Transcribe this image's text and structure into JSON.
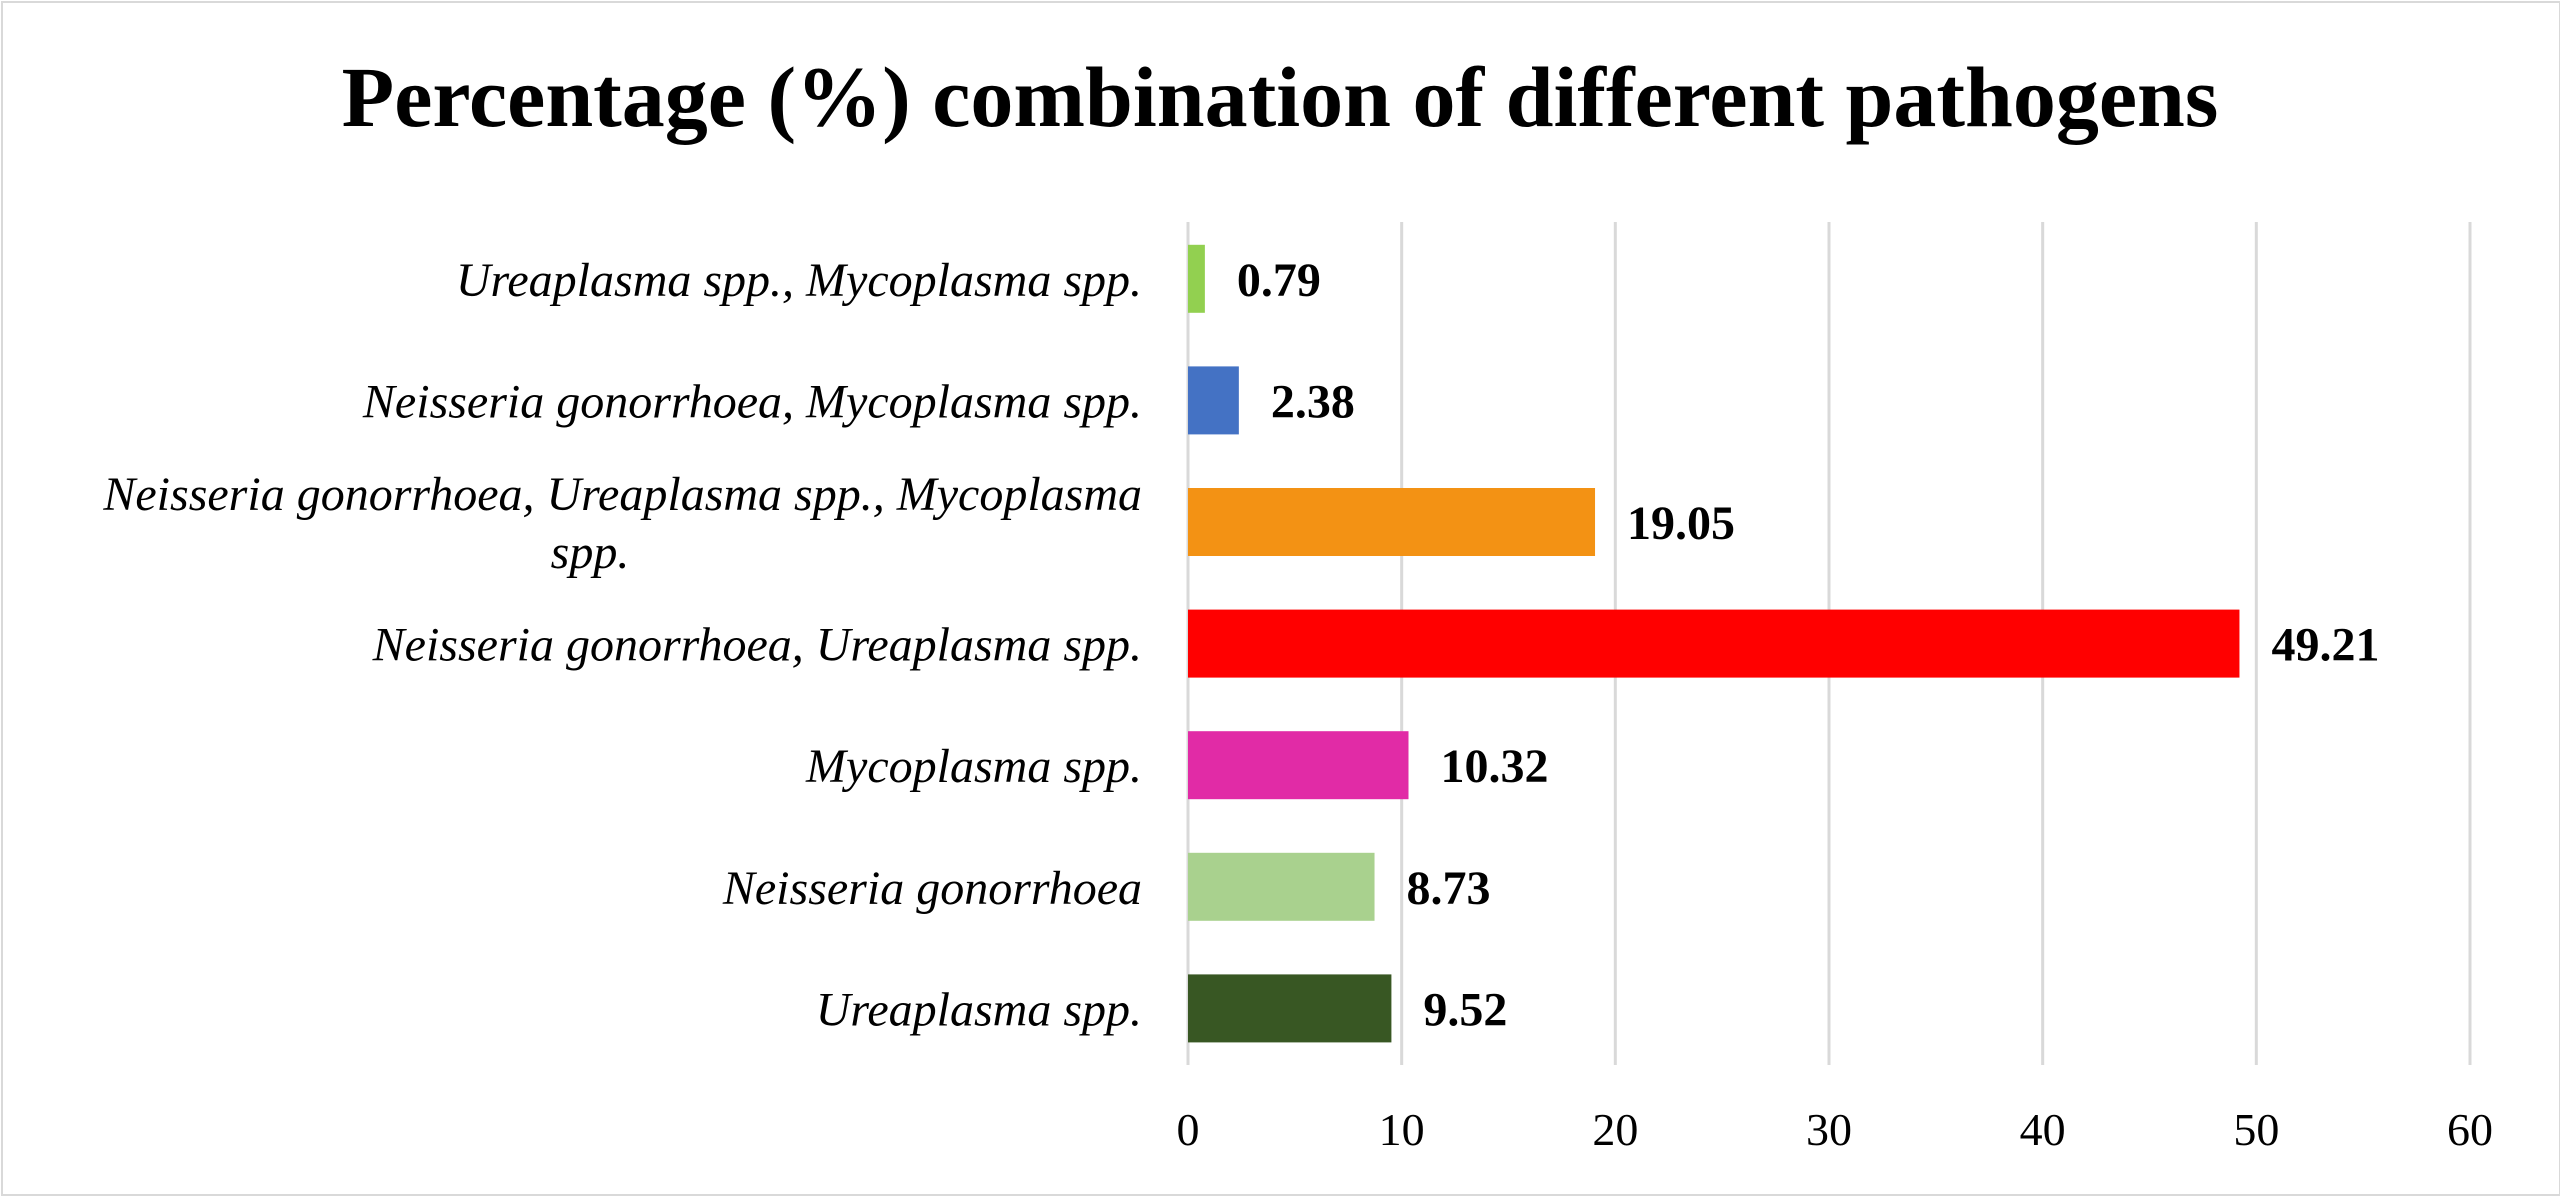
{
  "chart_data": {
    "type": "bar",
    "orientation": "horizontal",
    "title": "Percentage (%) combination of different pathogens",
    "xlabel": "",
    "ylabel": "",
    "xlim": [
      0,
      60
    ],
    "x_ticks": [
      "0",
      "10",
      "20",
      "30",
      "40",
      "50",
      "60"
    ],
    "grid": "vertical",
    "legend": "none",
    "categories": [
      {
        "lines": [
          "Ureaplasma spp., Mycoplasma spp."
        ]
      },
      {
        "lines": [
          "Neisseria gonorrhoea, Mycoplasma spp."
        ]
      },
      {
        "lines": [
          "Neisseria gonorrhoea, Ureaplasma spp., Mycoplasma",
          "spp."
        ]
      },
      {
        "lines": [
          "Neisseria gonorrhoea, Ureaplasma spp."
        ]
      },
      {
        "lines": [
          "Mycoplasma spp."
        ]
      },
      {
        "lines": [
          "Neisseria gonorrhoea"
        ]
      },
      {
        "lines": [
          "Ureaplasma spp."
        ]
      }
    ],
    "values": [
      0.79,
      2.38,
      19.05,
      49.21,
      10.32,
      8.73,
      9.52
    ],
    "value_labels": [
      "0.79",
      "2.38",
      "19.05",
      "49.21",
      "10.32",
      "8.73",
      "9.52"
    ],
    "colors": [
      "#92d050",
      "#4472c4",
      "#f39214",
      "#ff0000",
      "#e12ba6",
      "#a9d18e",
      "#385723"
    ]
  }
}
